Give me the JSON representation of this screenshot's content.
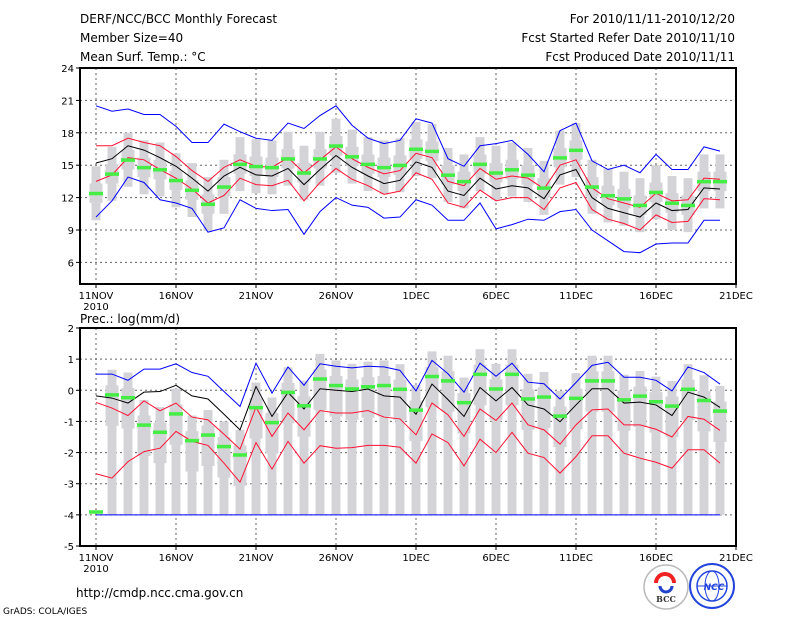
{
  "header": {
    "title": "DERF/NCC/BCC Monthly Forecast",
    "member_size": "Member Size=40",
    "variable": "Mean Surf. Temp.: °C",
    "period": "For 2010/11/11-2010/12/20",
    "started": "Fcst Started Refer Date 2010/11/10",
    "produced": "Fcst Produced Date 2010/11/11"
  },
  "footer": {
    "url": "http://cmdp.ncc.cma.gov.cn",
    "credit": "GrADS: COLA/IGES",
    "logo_bcc": "BCC",
    "logo_ncc": "NCC"
  },
  "colors": {
    "obs": "#44ee44",
    "box": "#d4d4d8",
    "mean": "#000000",
    "spread": "#ff1133",
    "extreme": "#0000ff"
  },
  "chart_data": [
    {
      "type": "line",
      "title": "Mean Surf. Temp.: °C",
      "x_start": "2010-11-11",
      "x_ticks": [
        "11NOV",
        "16NOV",
        "21NOV",
        "26NOV",
        "1DEC",
        "6DEC",
        "11DEC",
        "16DEC",
        "21DEC"
      ],
      "x_year": "2010",
      "ylim": [
        4,
        24
      ],
      "y_ticks": [
        "6",
        "9",
        "12",
        "15",
        "18",
        "21",
        "24"
      ],
      "grid": true,
      "series": [
        {
          "name": "max",
          "color": "extreme",
          "values": [
            20.5,
            20.0,
            20.2,
            19.7,
            19.7,
            18.6,
            17.1,
            17.1,
            18.8,
            18.1,
            17.5,
            17.3,
            18.9,
            18.4,
            19.6,
            20.5,
            18.7,
            17.5,
            17.0,
            17.3,
            19.3,
            18.9,
            15.6,
            14.9,
            16.8,
            17.0,
            17.3,
            16.0,
            14.4,
            18.2,
            18.9,
            15.4,
            14.6,
            15.0,
            14.3,
            16.0,
            14.6,
            14.6,
            16.7,
            16.3
          ]
        },
        {
          "name": "upper",
          "color": "spread",
          "values": [
            16.8,
            16.8,
            17.5,
            17.1,
            16.8,
            15.8,
            14.5,
            13.5,
            14.8,
            15.5,
            14.9,
            14.8,
            15.7,
            14.3,
            15.5,
            16.7,
            15.6,
            14.8,
            14.2,
            14.5,
            16.1,
            15.7,
            13.5,
            13.1,
            14.7,
            13.7,
            14.0,
            13.8,
            12.8,
            15.0,
            15.5,
            12.9,
            11.9,
            11.5,
            11.1,
            12.4,
            11.7,
            11.8,
            13.8,
            13.7
          ]
        },
        {
          "name": "mean",
          "color": "mean",
          "values": [
            15.2,
            15.6,
            16.8,
            16.4,
            15.7,
            14.9,
            13.8,
            12.6,
            14.0,
            14.8,
            14.1,
            14.0,
            14.7,
            13.2,
            14.6,
            15.9,
            14.8,
            14.0,
            13.3,
            13.6,
            15.3,
            14.8,
            12.6,
            12.2,
            13.8,
            12.8,
            13.1,
            12.9,
            11.9,
            14.1,
            14.6,
            12.0,
            11.0,
            10.6,
            10.2,
            11.5,
            10.8,
            10.9,
            12.9,
            12.8
          ]
        },
        {
          "name": "lower",
          "color": "spread",
          "values": [
            13.5,
            14.1,
            15.7,
            15.5,
            14.6,
            13.8,
            12.8,
            11.5,
            12.2,
            13.8,
            13.2,
            13.1,
            13.6,
            11.7,
            13.4,
            14.7,
            13.7,
            13.1,
            12.3,
            12.6,
            14.3,
            13.7,
            11.5,
            11.1,
            12.7,
            11.7,
            12.0,
            12.0,
            10.9,
            12.9,
            13.4,
            10.9,
            10.0,
            9.6,
            9.0,
            10.4,
            9.7,
            9.8,
            11.9,
            11.8
          ]
        },
        {
          "name": "min",
          "color": "extreme",
          "values": [
            10.2,
            11.7,
            13.9,
            13.4,
            11.8,
            11.5,
            11.0,
            8.8,
            9.2,
            11.8,
            11.0,
            10.8,
            10.9,
            8.6,
            10.7,
            12.0,
            11.3,
            11.1,
            10.1,
            10.2,
            11.8,
            11.3,
            9.9,
            9.9,
            11.5,
            9.1,
            9.5,
            10.0,
            9.9,
            10.7,
            10.9,
            9.0,
            8.0,
            7.0,
            6.9,
            7.7,
            7.8,
            7.8,
            9.9,
            9.9
          ]
        }
      ],
      "observed": [
        12.4,
        14.2,
        15.5,
        14.8,
        14.6,
        13.6,
        12.7,
        11.4,
        13.0,
        15.1,
        14.9,
        14.8,
        15.6,
        14.3,
        15.6,
        16.8,
        15.8,
        15.1,
        14.8,
        15.0,
        16.5,
        16.3,
        14.1,
        13.5,
        15.1,
        14.3,
        14.6,
        14.1,
        12.9,
        15.7,
        16.4,
        13.0,
        12.2,
        11.9,
        11.3,
        12.5,
        11.5,
        11.3,
        13.5,
        13.5
      ],
      "box": {
        "whisker_lo": [
          9.9,
          11.7,
          13.0,
          12.3,
          12.1,
          11.1,
          10.2,
          8.9,
          10.5,
          12.6,
          12.4,
          12.3,
          13.1,
          11.8,
          13.1,
          14.3,
          13.3,
          12.6,
          12.3,
          12.5,
          14.0,
          13.8,
          11.6,
          11.0,
          12.6,
          11.8,
          12.1,
          11.6,
          10.4,
          13.2,
          13.9,
          10.5,
          9.7,
          9.4,
          8.8,
          10.0,
          9.0,
          8.8,
          11.0,
          11.0
        ],
        "whisker_hi": [
          14.9,
          16.7,
          18.0,
          17.3,
          17.1,
          16.1,
          15.2,
          13.9,
          15.5,
          17.6,
          17.4,
          17.3,
          18.1,
          16.8,
          18.1,
          19.3,
          18.3,
          17.6,
          17.3,
          17.5,
          19.0,
          18.8,
          16.6,
          16.0,
          17.6,
          16.8,
          17.1,
          16.6,
          15.4,
          18.2,
          18.9,
          15.5,
          14.7,
          14.4,
          13.8,
          15.0,
          14.0,
          13.8,
          16.0,
          16.0
        ],
        "q25": [
          11.5,
          13.3,
          14.6,
          13.9,
          13.7,
          12.7,
          11.8,
          10.5,
          12.1,
          14.2,
          14.0,
          13.9,
          14.7,
          13.4,
          14.7,
          15.9,
          14.9,
          14.2,
          13.9,
          14.1,
          15.6,
          15.4,
          13.2,
          12.6,
          14.2,
          13.4,
          13.7,
          13.2,
          12.0,
          14.8,
          15.5,
          12.1,
          11.3,
          11.0,
          10.4,
          11.6,
          10.6,
          10.4,
          12.6,
          12.6
        ],
        "q75": [
          13.3,
          15.1,
          16.4,
          15.7,
          15.5,
          14.5,
          13.6,
          12.3,
          13.9,
          16.0,
          15.8,
          15.7,
          16.5,
          15.2,
          16.5,
          17.7,
          16.7,
          16.0,
          15.7,
          15.9,
          17.4,
          17.2,
          15.0,
          14.4,
          16.0,
          15.2,
          15.5,
          15.0,
          13.8,
          16.6,
          17.3,
          13.9,
          13.1,
          12.8,
          12.2,
          13.4,
          12.4,
          12.2,
          14.4,
          14.4
        ]
      }
    },
    {
      "type": "line",
      "title": "Prec.: log(mm/d)",
      "x_start": "2010-11-11",
      "x_ticks": [
        "11NOV",
        "16NOV",
        "21NOV",
        "26NOV",
        "1DEC",
        "6DEC",
        "11DEC",
        "16DEC",
        "21DEC"
      ],
      "x_year": "2010",
      "ylim": [
        -5,
        2
      ],
      "y_ticks": [
        "-5",
        "-4",
        "-3",
        "-2",
        "-1",
        "0",
        "1",
        "2"
      ],
      "grid": true,
      "series": [
        {
          "name": "max",
          "color": "extreme",
          "values": [
            0.52,
            0.52,
            0.32,
            0.68,
            0.68,
            0.85,
            0.57,
            0.45,
            -0.04,
            -0.52,
            0.87,
            -0.09,
            0.75,
            0.16,
            0.85,
            0.77,
            0.72,
            0.77,
            0.75,
            0.64,
            -0.02,
            0.96,
            0.53,
            -0.06,
            0.87,
            0.45,
            0.87,
            0.26,
            0.21,
            -0.28,
            0.25,
            0.8,
            0.9,
            0.42,
            0.42,
            0.32,
            -0.02,
            0.75,
            0.57,
            0.2
          ]
        },
        {
          "name": "upper",
          "color": "spread",
          "values": [
            -0.39,
            -0.57,
            -0.81,
            -0.34,
            -0.66,
            -0.41,
            -0.86,
            -0.95,
            -1.41,
            -1.89,
            -0.54,
            -1.48,
            -0.73,
            -1.27,
            -0.65,
            -0.73,
            -0.73,
            -0.65,
            -0.86,
            -0.92,
            -1.43,
            -0.41,
            -0.79,
            -1.48,
            -0.6,
            -0.97,
            -0.41,
            -1.11,
            -1.27,
            -1.73,
            -1.11,
            -0.63,
            -0.6,
            -1.11,
            -1.11,
            -1.25,
            -1.5,
            -0.84,
            -0.93,
            -1.29
          ]
        },
        {
          "name": "mean",
          "color": "mean",
          "values": [
            -0.18,
            -0.25,
            -0.41,
            -0.06,
            -0.04,
            0.16,
            -0.18,
            -0.28,
            -0.77,
            -1.27,
            0.12,
            -0.84,
            -0.07,
            -0.6,
            0.05,
            0.0,
            -0.04,
            0.04,
            -0.18,
            -0.22,
            -0.77,
            0.2,
            -0.3,
            -0.84,
            0.09,
            -0.34,
            0.09,
            -0.47,
            -0.6,
            -1.01,
            -0.47,
            0.05,
            0.05,
            -0.41,
            -0.38,
            -0.47,
            -0.81,
            -0.06,
            -0.22,
            -0.55
          ]
        },
        {
          "name": "lower",
          "color": "spread",
          "values": [
            -2.68,
            -2.82,
            -2.29,
            -1.97,
            -1.86,
            -1.32,
            -1.64,
            -1.77,
            -2.34,
            -2.95,
            -1.68,
            -2.53,
            -1.64,
            -2.34,
            -1.78,
            -1.86,
            -1.84,
            -1.77,
            -1.77,
            -1.83,
            -2.34,
            -1.4,
            -1.68,
            -2.43,
            -1.57,
            -2.0,
            -1.35,
            -2.02,
            -2.16,
            -2.66,
            -2.13,
            -1.46,
            -1.46,
            -2.02,
            -2.18,
            -2.31,
            -2.5,
            -1.91,
            -1.91,
            -2.34
          ]
        },
        {
          "name": "min",
          "color": "extreme",
          "values": [
            -4,
            -4,
            -4,
            -4,
            -4,
            -4,
            -4,
            -4,
            -4,
            -4,
            -4,
            -4,
            -4,
            -4,
            -4,
            -4,
            -4,
            -4,
            -4,
            -4,
            -4,
            -4,
            -4,
            -4,
            -4,
            -4,
            -4,
            -4,
            -4,
            -4,
            -4,
            -4,
            -4,
            -4,
            -4,
            -4,
            -4,
            -4,
            -4,
            -4
          ]
        }
      ],
      "observed": [
        -3.9,
        -0.14,
        -0.23,
        -1.11,
        -1.34,
        -0.75,
        -1.61,
        -1.43,
        -1.8,
        -2.07,
        -0.55,
        -1.03,
        -0.06,
        -0.49,
        0.37,
        0.16,
        0.05,
        0.12,
        0.16,
        0.04,
        -0.63,
        0.45,
        0.31,
        -0.39,
        0.52,
        0.05,
        0.52,
        -0.27,
        -0.21,
        -0.82,
        -0.25,
        0.31,
        0.31,
        -0.3,
        -0.18,
        -0.36,
        -0.5,
        0.04,
        -0.32,
        -0.66
      ],
      "box": {
        "whisker_lo": [
          null,
          -4,
          -4,
          -4,
          -4,
          -4,
          -4,
          -4,
          -4,
          -4,
          -4,
          -4,
          -4,
          -4,
          -4,
          -4,
          -4,
          -4,
          -4,
          -4,
          -4,
          -4,
          -4,
          -4,
          -4,
          -4,
          -4,
          -4,
          -4,
          -4,
          -4,
          -4,
          -4,
          -4,
          -4,
          -4,
          -4,
          -4,
          -4,
          -4
        ],
        "whisker_hi": [
          null,
          0.66,
          0.57,
          -0.31,
          -0.54,
          0.05,
          -0.81,
          -0.63,
          -1.0,
          -1.27,
          0.25,
          -0.23,
          0.74,
          0.31,
          1.17,
          0.96,
          0.85,
          0.92,
          0.96,
          0.84,
          0.17,
          1.25,
          1.11,
          0.41,
          1.32,
          0.85,
          1.32,
          0.53,
          0.59,
          -0.02,
          0.55,
          1.11,
          1.11,
          0.5,
          0.62,
          0.44,
          0.3,
          0.84,
          0.48,
          0.14
        ],
        "q25": [
          null,
          -1.14,
          -1.23,
          -2.11,
          -2.34,
          -1.75,
          -2.61,
          -2.43,
          -2.8,
          -3.07,
          -1.55,
          -2.03,
          -1.06,
          -1.49,
          -0.63,
          -0.84,
          -0.95,
          -0.88,
          -0.84,
          -0.96,
          -1.63,
          -0.55,
          -0.69,
          -1.39,
          -0.48,
          -0.95,
          -0.48,
          -1.27,
          -1.21,
          -1.82,
          -1.25,
          -0.69,
          -0.69,
          -1.3,
          -1.18,
          -1.36,
          -1.5,
          -0.96,
          -1.32,
          -1.66
        ],
        "q75": [
          null,
          0.16,
          0.07,
          -0.81,
          -1.04,
          -0.45,
          -1.31,
          -1.13,
          -1.5,
          -1.77,
          -0.25,
          -0.73,
          0.24,
          -0.19,
          0.67,
          0.46,
          0.35,
          0.42,
          0.46,
          0.34,
          -0.33,
          0.75,
          0.61,
          -0.09,
          0.82,
          0.35,
          0.82,
          0.03,
          0.09,
          -0.52,
          0.05,
          0.61,
          0.61,
          0,
          0.12,
          -0.06,
          -0.2,
          0.34,
          -0.02,
          -0.36
        ]
      }
    }
  ]
}
